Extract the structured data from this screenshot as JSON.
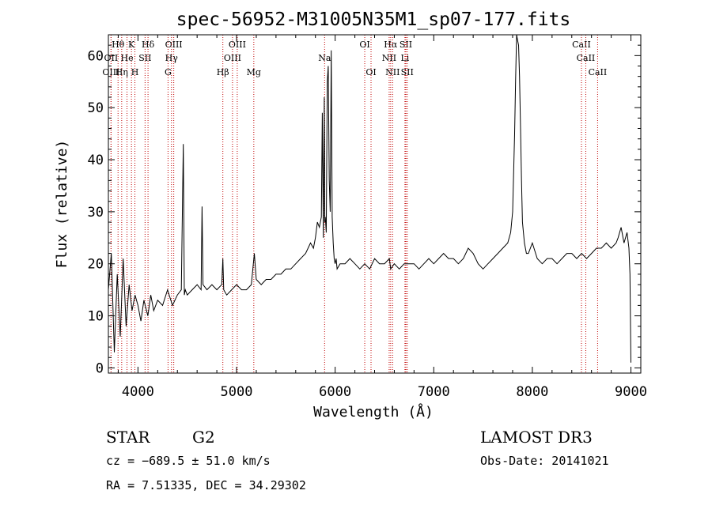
{
  "chart_data": {
    "type": "line",
    "title": "spec-56952-M31005N35M1_sp07-177.fits",
    "xlabel": "Wavelength (Å)",
    "ylabel": "Flux (relative)",
    "xlim": [
      3700,
      9100
    ],
    "ylim": [
      -1,
      64
    ],
    "xticks": [
      4000,
      5000,
      6000,
      7000,
      8000,
      9000
    ],
    "yticks": [
      0,
      10,
      20,
      30,
      40,
      50,
      60
    ],
    "grid": false,
    "series": [
      {
        "name": "spectrum",
        "x": [
          3700,
          3730,
          3760,
          3790,
          3820,
          3850,
          3880,
          3910,
          3940,
          3970,
          4000,
          4030,
          4060,
          4100,
          4130,
          4160,
          4200,
          4250,
          4300,
          4350,
          4400,
          4440,
          4460,
          4470,
          4480,
          4500,
          4550,
          4600,
          4640,
          4650,
          4660,
          4700,
          4750,
          4800,
          4850,
          4861,
          4870,
          4900,
          4950,
          5000,
          5050,
          5100,
          5150,
          5180,
          5200,
          5250,
          5300,
          5350,
          5400,
          5450,
          5500,
          5550,
          5600,
          5650,
          5700,
          5750,
          5780,
          5800,
          5820,
          5840,
          5860,
          5870,
          5880,
          5890,
          5895,
          5900,
          5910,
          5920,
          5930,
          5940,
          5950,
          5960,
          5970,
          5980,
          5990,
          6000,
          6010,
          6020,
          6050,
          6100,
          6150,
          6200,
          6250,
          6300,
          6350,
          6400,
          6450,
          6500,
          6550,
          6563,
          6600,
          6650,
          6700,
          6750,
          6800,
          6850,
          6900,
          6950,
          7000,
          7050,
          7100,
          7150,
          7200,
          7250,
          7300,
          7350,
          7400,
          7450,
          7500,
          7550,
          7600,
          7650,
          7700,
          7750,
          7780,
          7800,
          7820,
          7830,
          7840,
          7850,
          7860,
          7870,
          7880,
          7890,
          7900,
          7920,
          7940,
          7960,
          7980,
          8000,
          8050,
          8100,
          8150,
          8200,
          8250,
          8300,
          8350,
          8400,
          8450,
          8500,
          8550,
          8600,
          8650,
          8700,
          8750,
          8800,
          8850,
          8870,
          8900,
          8930,
          8960,
          8980,
          8990,
          9000
        ],
        "y": [
          15,
          22,
          3,
          18,
          6,
          21,
          8,
          16,
          11,
          14,
          12,
          9,
          13,
          10,
          14,
          11,
          13,
          12,
          15,
          12,
          14,
          15,
          43,
          14,
          15,
          14,
          15,
          16,
          15,
          31,
          16,
          15,
          16,
          15,
          16,
          21,
          15,
          14,
          15,
          16,
          15,
          15,
          16,
          22,
          17,
          16,
          17,
          17,
          18,
          18,
          19,
          19,
          20,
          21,
          22,
          24,
          23,
          25,
          28,
          27,
          29,
          49,
          25,
          52,
          28,
          29,
          26,
          55,
          58,
          36,
          30,
          61,
          29,
          24,
          21,
          20,
          21,
          19,
          20,
          20,
          21,
          20,
          19,
          20,
          19,
          21,
          20,
          20,
          21,
          19,
          20,
          19,
          20,
          20,
          20,
          19,
          20,
          21,
          20,
          21,
          22,
          21,
          21,
          20,
          21,
          23,
          22,
          20,
          19,
          20,
          21,
          22,
          23,
          24,
          26,
          30,
          45,
          55,
          64,
          63,
          62,
          56,
          46,
          36,
          28,
          24,
          22,
          22,
          23,
          24,
          21,
          20,
          21,
          21,
          20,
          21,
          22,
          22,
          21,
          22,
          21,
          22,
          23,
          23,
          24,
          23,
          24,
          25,
          27,
          24,
          26,
          23,
          18,
          1
        ]
      }
    ],
    "line_markers": [
      {
        "label": "Hθ",
        "x": 3798,
        "row": 0
      },
      {
        "label": "OII",
        "x": 3727,
        "row": 1
      },
      {
        "label": "OIII",
        "x": 3727,
        "row": 2
      },
      {
        "label": "K",
        "x": 3934,
        "row": 0
      },
      {
        "label": "He",
        "x": 3889,
        "row": 1
      },
      {
        "label": "Hη",
        "x": 3835,
        "row": 2
      },
      {
        "label": "SII",
        "x": 4072,
        "row": 1
      },
      {
        "label": "H",
        "x": 3969,
        "row": 2
      },
      {
        "label": "Hδ",
        "x": 4102,
        "row": 0
      },
      {
        "label": "OIII",
        "x": 4363,
        "row": 0
      },
      {
        "label": "Hγ",
        "x": 4340,
        "row": 1
      },
      {
        "label": "G",
        "x": 4305,
        "row": 2
      },
      {
        "label": "OIII",
        "x": 5007,
        "row": 0
      },
      {
        "label": "OIII",
        "x": 4959,
        "row": 1
      },
      {
        "label": "Hβ",
        "x": 4861,
        "row": 2
      },
      {
        "label": "Mg",
        "x": 5175,
        "row": 2
      },
      {
        "label": "Na",
        "x": 5893,
        "row": 1
      },
      {
        "label": "OI",
        "x": 6300,
        "row": 0
      },
      {
        "label": "OI",
        "x": 6364,
        "row": 2
      },
      {
        "label": "Hα",
        "x": 6563,
        "row": 0
      },
      {
        "label": "NII",
        "x": 6548,
        "row": 1
      },
      {
        "label": "NII",
        "x": 6583,
        "row": 2
      },
      {
        "label": "SII",
        "x": 6717,
        "row": 0
      },
      {
        "label": "Li",
        "x": 6708,
        "row": 1
      },
      {
        "label": "SII",
        "x": 6731,
        "row": 2
      },
      {
        "label": "CaII",
        "x": 8498,
        "row": 0
      },
      {
        "label": "CaII",
        "x": 8542,
        "row": 1
      },
      {
        "label": "CaII",
        "x": 8662,
        "row": 2
      }
    ]
  },
  "info": {
    "class_label": "STAR",
    "subclass": "G2",
    "survey": "LAMOST DR3",
    "cz": "cz = −689.5 ± 51.0 km/s",
    "obs_date": "Obs-Date: 20141021",
    "radec": "RA =   7.51335, DEC =  34.29302"
  }
}
